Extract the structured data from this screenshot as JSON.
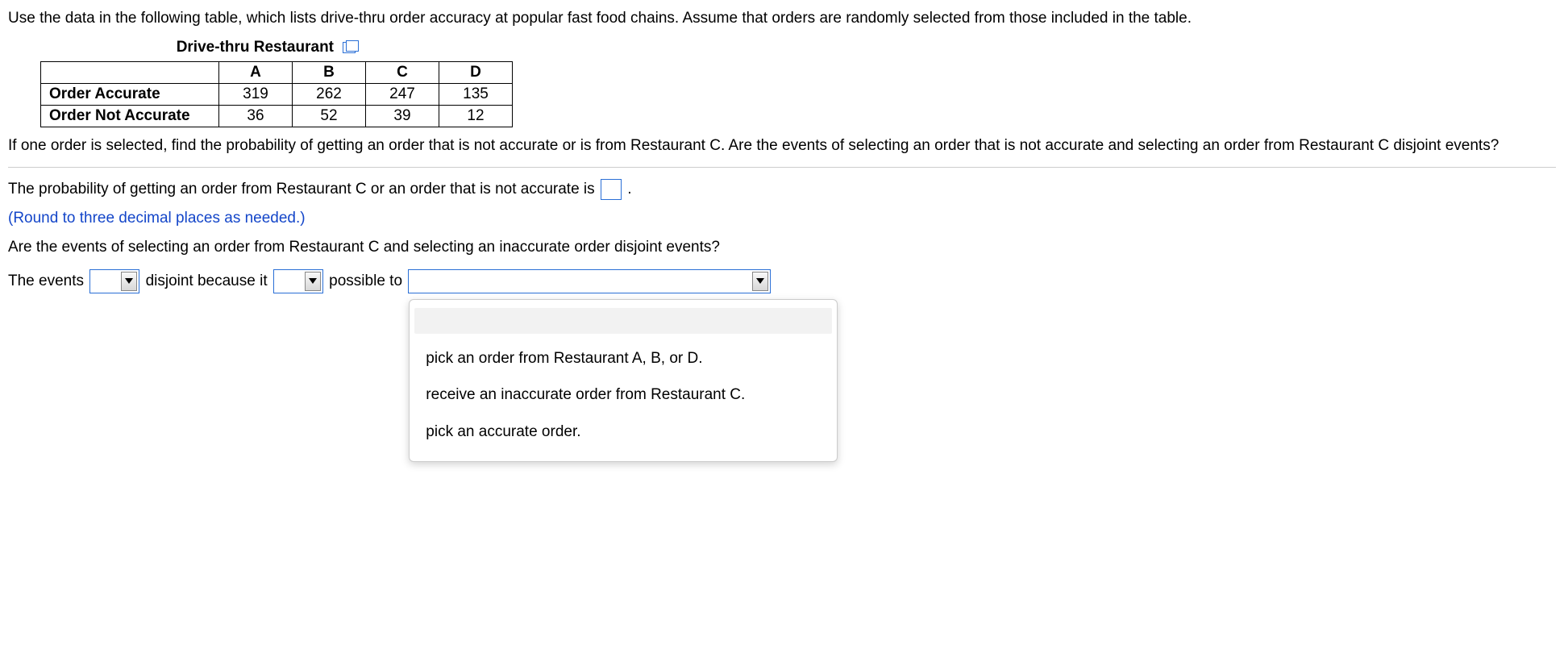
{
  "intro": "Use the data in the following table, which lists drive-thru order accuracy at popular fast food chains. Assume that orders are randomly selected from those included in the table.",
  "table": {
    "title": "Drive-thru Restaurant",
    "columns": [
      "A",
      "B",
      "C",
      "D"
    ],
    "rows": [
      {
        "label": "Order Accurate",
        "values": [
          "319",
          "262",
          "247",
          "135"
        ]
      },
      {
        "label": "Order Not Accurate",
        "values": [
          "36",
          "52",
          "39",
          "12"
        ]
      }
    ]
  },
  "question": "If one order is selected, find the probability of getting an order that is not accurate or is from Restaurant C. Are the events of selecting an order that is not accurate and selecting an order from Restaurant C disjoint events?",
  "prob_sentence_prefix": "The probability of getting an order from Restaurant C or an order that is not accurate is ",
  "prob_sentence_suffix": ".",
  "round_hint": "(Round to three decimal places as needed.)",
  "disjoint_question": "Are the events of selecting an order from Restaurant C and selecting an inaccurate order disjoint events?",
  "sentence": {
    "p1": "The events ",
    "p2": " disjoint because it ",
    "p3": " possible to "
  },
  "dropdown_options": [
    "pick an order from Restaurant A, B, or D.",
    "receive an inaccurate order from Restaurant C.",
    "pick an accurate order."
  ]
}
